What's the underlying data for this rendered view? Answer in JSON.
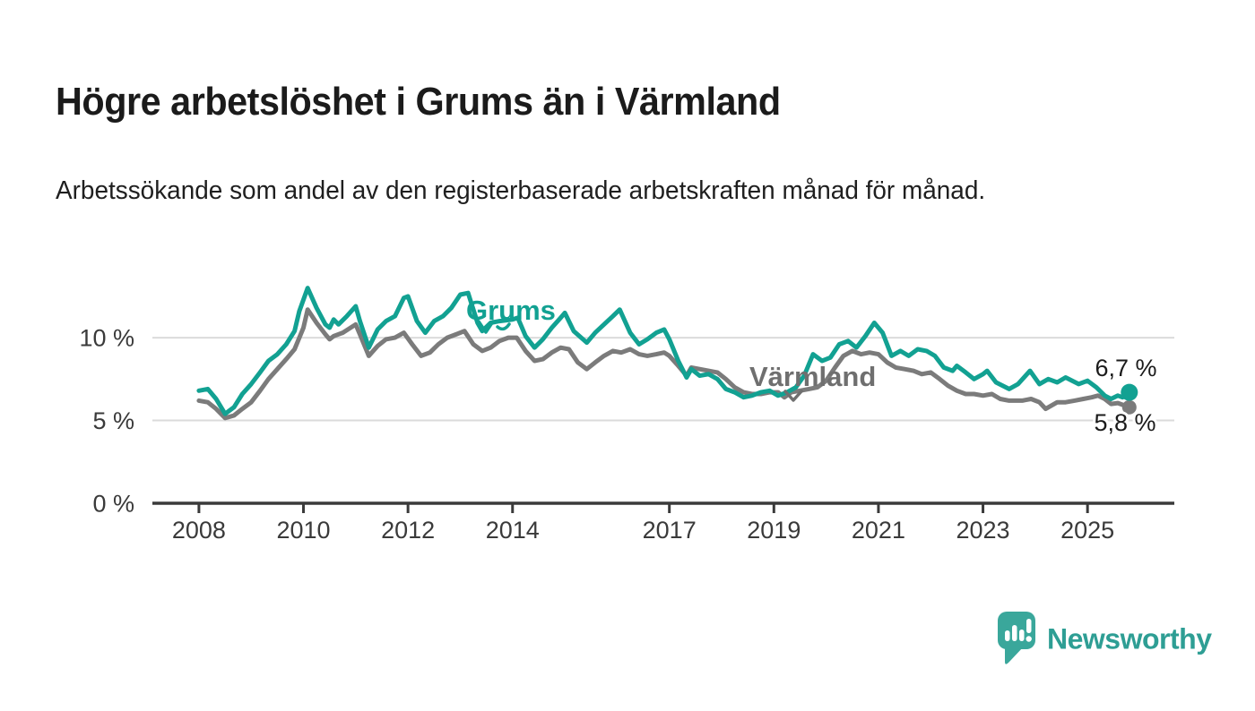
{
  "title": "Högre arbetslöshet i Grums än i Värmland",
  "subtitle": "Arbetssökande som andel av den registerbaserade arbetskraften månad för månad.",
  "logo": {
    "brand": "Newsworthy"
  },
  "colors": {
    "grums_line": "#12A192",
    "varmland_line": "#7B7B7B",
    "varmland_label": "#6F6F6F",
    "axis": "#3A3A3A",
    "gridline": "#DBDBDB",
    "annotation_text": "#1B1B1B",
    "logo_bubble": "#3AA79B",
    "logo_text": "#2E9E94",
    "background": "#FFFFFF"
  },
  "chart_data": {
    "type": "line",
    "unit": "%",
    "title": "Högre arbetslöshet i Grums än i Värmland",
    "xlabel": "",
    "ylabel": "",
    "xlim": [
      2007.1,
      2026.7
    ],
    "ylim": [
      0,
      14.8
    ],
    "grid": "horizontal",
    "legend_position": "inline-annotations",
    "x_ticks": [
      2008,
      2010,
      2012,
      2014,
      2017,
      2019,
      2021,
      2023,
      2025
    ],
    "x_tick_labels": [
      "2008",
      "2010",
      "2012",
      "2014",
      "2017",
      "2019",
      "2021",
      "2023",
      "2025"
    ],
    "y_ticks": [
      {
        "value": 0,
        "label": "0 %"
      },
      {
        "value": 5,
        "label": "5 %"
      },
      {
        "value": 10,
        "label": "10 %"
      }
    ],
    "series": [
      {
        "name": "Värmland",
        "color": "#7B7B7B",
        "end_label": "5,8 %",
        "end_value": 5.8,
        "points": [
          [
            2008.0,
            6.2
          ],
          [
            2008.17,
            6.1
          ],
          [
            2008.33,
            5.7
          ],
          [
            2008.5,
            5.15
          ],
          [
            2008.67,
            5.3
          ],
          [
            2008.83,
            5.7
          ],
          [
            2009.0,
            6.1
          ],
          [
            2009.17,
            6.8
          ],
          [
            2009.33,
            7.5
          ],
          [
            2009.5,
            8.1
          ],
          [
            2009.67,
            8.7
          ],
          [
            2009.83,
            9.3
          ],
          [
            2010.0,
            10.6
          ],
          [
            2010.08,
            11.7
          ],
          [
            2010.25,
            10.9
          ],
          [
            2010.42,
            10.2
          ],
          [
            2010.5,
            9.9
          ],
          [
            2010.58,
            10.1
          ],
          [
            2010.75,
            10.3
          ],
          [
            2011.0,
            10.8
          ],
          [
            2011.08,
            10.2
          ],
          [
            2011.25,
            8.9
          ],
          [
            2011.42,
            9.5
          ],
          [
            2011.58,
            9.9
          ],
          [
            2011.75,
            10.0
          ],
          [
            2011.92,
            10.3
          ],
          [
            2012.08,
            9.6
          ],
          [
            2012.25,
            8.9
          ],
          [
            2012.42,
            9.1
          ],
          [
            2012.58,
            9.6
          ],
          [
            2012.75,
            10.0
          ],
          [
            2012.92,
            10.2
          ],
          [
            2013.08,
            10.4
          ],
          [
            2013.25,
            9.6
          ],
          [
            2013.42,
            9.2
          ],
          [
            2013.58,
            9.4
          ],
          [
            2013.75,
            9.8
          ],
          [
            2013.92,
            10.0
          ],
          [
            2014.08,
            10.0
          ],
          [
            2014.25,
            9.2
          ],
          [
            2014.42,
            8.6
          ],
          [
            2014.58,
            8.7
          ],
          [
            2014.75,
            9.1
          ],
          [
            2014.92,
            9.4
          ],
          [
            2015.08,
            9.3
          ],
          [
            2015.25,
            8.5
          ],
          [
            2015.42,
            8.1
          ],
          [
            2015.58,
            8.5
          ],
          [
            2015.75,
            8.9
          ],
          [
            2015.92,
            9.2
          ],
          [
            2016.08,
            9.1
          ],
          [
            2016.25,
            9.3
          ],
          [
            2016.42,
            9.0
          ],
          [
            2016.58,
            8.9
          ],
          [
            2016.75,
            9.0
          ],
          [
            2016.9,
            9.1
          ],
          [
            2017.0,
            8.9
          ],
          [
            2017.17,
            8.3
          ],
          [
            2017.33,
            7.7
          ],
          [
            2017.42,
            8.2
          ],
          [
            2017.58,
            8.1
          ],
          [
            2017.75,
            8.0
          ],
          [
            2017.92,
            7.9
          ],
          [
            2018.08,
            7.5
          ],
          [
            2018.25,
            7.0
          ],
          [
            2018.42,
            6.7
          ],
          [
            2018.58,
            6.6
          ],
          [
            2018.75,
            6.6
          ],
          [
            2018.92,
            6.7
          ],
          [
            2019.08,
            6.7
          ],
          [
            2019.2,
            6.4
          ],
          [
            2019.33,
            6.7
          ],
          [
            2019.5,
            6.8
          ],
          [
            2019.67,
            6.9
          ],
          [
            2019.83,
            7.0
          ],
          [
            2020.0,
            7.4
          ],
          [
            2020.17,
            8.2
          ],
          [
            2020.33,
            8.9
          ],
          [
            2020.5,
            9.2
          ],
          [
            2020.67,
            9.0
          ],
          [
            2020.83,
            9.1
          ],
          [
            2021.0,
            9.0
          ],
          [
            2021.17,
            8.5
          ],
          [
            2021.33,
            8.2
          ],
          [
            2021.5,
            8.1
          ],
          [
            2021.67,
            8.0
          ],
          [
            2021.83,
            7.8
          ],
          [
            2022.0,
            7.9
          ],
          [
            2022.17,
            7.5
          ],
          [
            2022.33,
            7.1
          ],
          [
            2022.5,
            6.8
          ],
          [
            2022.67,
            6.6
          ],
          [
            2022.83,
            6.6
          ],
          [
            2023.0,
            6.5
          ],
          [
            2023.17,
            6.6
          ],
          [
            2023.33,
            6.3
          ],
          [
            2023.5,
            6.2
          ],
          [
            2023.75,
            6.2
          ],
          [
            2023.92,
            6.3
          ],
          [
            2024.08,
            6.1
          ],
          [
            2024.2,
            5.7
          ],
          [
            2024.42,
            6.1
          ],
          [
            2024.58,
            6.1
          ],
          [
            2024.75,
            6.2
          ],
          [
            2024.92,
            6.3
          ],
          [
            2025.08,
            6.4
          ],
          [
            2025.2,
            6.5
          ],
          [
            2025.33,
            6.3
          ],
          [
            2025.45,
            6.0
          ],
          [
            2025.58,
            6.05
          ],
          [
            2025.67,
            5.95
          ],
          [
            2025.8,
            5.8
          ]
        ]
      },
      {
        "name": "Grums",
        "color": "#12A192",
        "end_label": "6,7 %",
        "end_value": 6.7,
        "points": [
          [
            2008.0,
            6.8
          ],
          [
            2008.17,
            6.9
          ],
          [
            2008.33,
            6.3
          ],
          [
            2008.5,
            5.4
          ],
          [
            2008.67,
            5.8
          ],
          [
            2008.83,
            6.6
          ],
          [
            2009.0,
            7.2
          ],
          [
            2009.17,
            7.9
          ],
          [
            2009.33,
            8.6
          ],
          [
            2009.5,
            9.0
          ],
          [
            2009.67,
            9.6
          ],
          [
            2009.83,
            10.4
          ],
          [
            2009.92,
            11.6
          ],
          [
            2010.08,
            13.0
          ],
          [
            2010.25,
            11.8
          ],
          [
            2010.42,
            10.8
          ],
          [
            2010.5,
            10.6
          ],
          [
            2010.58,
            11.1
          ],
          [
            2010.67,
            10.8
          ],
          [
            2010.83,
            11.3
          ],
          [
            2011.0,
            11.9
          ],
          [
            2011.08,
            11.0
          ],
          [
            2011.25,
            9.4
          ],
          [
            2011.42,
            10.5
          ],
          [
            2011.58,
            11.0
          ],
          [
            2011.75,
            11.3
          ],
          [
            2011.92,
            12.4
          ],
          [
            2012.0,
            12.5
          ],
          [
            2012.17,
            11.0
          ],
          [
            2012.33,
            10.3
          ],
          [
            2012.5,
            11.0
          ],
          [
            2012.67,
            11.3
          ],
          [
            2012.83,
            11.8
          ],
          [
            2013.0,
            12.6
          ],
          [
            2013.15,
            12.7
          ],
          [
            2013.33,
            10.9
          ],
          [
            2013.42,
            10.4
          ],
          [
            2013.58,
            10.9
          ],
          [
            2013.75,
            11.0
          ],
          [
            2014.0,
            11.1
          ],
          [
            2014.1,
            11.2
          ],
          [
            2014.25,
            10.1
          ],
          [
            2014.42,
            9.4
          ],
          [
            2014.58,
            9.9
          ],
          [
            2014.75,
            10.6
          ],
          [
            2014.92,
            11.2
          ],
          [
            2015.0,
            11.5
          ],
          [
            2015.17,
            10.4
          ],
          [
            2015.42,
            9.7
          ],
          [
            2015.58,
            10.3
          ],
          [
            2015.75,
            10.8
          ],
          [
            2015.92,
            11.3
          ],
          [
            2016.05,
            11.7
          ],
          [
            2016.25,
            10.3
          ],
          [
            2016.42,
            9.6
          ],
          [
            2016.58,
            9.9
          ],
          [
            2016.75,
            10.3
          ],
          [
            2016.9,
            10.5
          ],
          [
            2017.0,
            9.9
          ],
          [
            2017.17,
            8.6
          ],
          [
            2017.33,
            7.6
          ],
          [
            2017.42,
            8.1
          ],
          [
            2017.58,
            7.7
          ],
          [
            2017.75,
            7.8
          ],
          [
            2017.92,
            7.5
          ],
          [
            2018.08,
            6.9
          ],
          [
            2018.25,
            6.7
          ],
          [
            2018.42,
            6.4
          ],
          [
            2018.58,
            6.5
          ],
          [
            2018.75,
            6.7
          ],
          [
            2018.92,
            6.8
          ],
          [
            2019.08,
            6.5
          ],
          [
            2019.25,
            6.7
          ],
          [
            2019.42,
            7.0
          ],
          [
            2019.58,
            7.7
          ],
          [
            2019.75,
            9.0
          ],
          [
            2019.92,
            8.6
          ],
          [
            2020.08,
            8.8
          ],
          [
            2020.25,
            9.6
          ],
          [
            2020.42,
            9.8
          ],
          [
            2020.58,
            9.4
          ],
          [
            2020.75,
            10.1
          ],
          [
            2020.92,
            10.9
          ],
          [
            2021.08,
            10.3
          ],
          [
            2021.25,
            8.9
          ],
          [
            2021.42,
            9.2
          ],
          [
            2021.58,
            8.9
          ],
          [
            2021.75,
            9.3
          ],
          [
            2021.92,
            9.2
          ],
          [
            2022.08,
            8.9
          ],
          [
            2022.25,
            8.2
          ],
          [
            2022.42,
            8.0
          ],
          [
            2022.5,
            8.3
          ],
          [
            2022.67,
            7.9
          ],
          [
            2022.83,
            7.5
          ],
          [
            2023.0,
            7.8
          ],
          [
            2023.08,
            8.0
          ],
          [
            2023.25,
            7.3
          ],
          [
            2023.5,
            6.9
          ],
          [
            2023.67,
            7.2
          ],
          [
            2023.9,
            8.0
          ],
          [
            2024.08,
            7.2
          ],
          [
            2024.25,
            7.5
          ],
          [
            2024.42,
            7.3
          ],
          [
            2024.58,
            7.6
          ],
          [
            2024.83,
            7.2
          ],
          [
            2025.0,
            7.4
          ],
          [
            2025.17,
            7.0
          ],
          [
            2025.33,
            6.5
          ],
          [
            2025.45,
            6.3
          ],
          [
            2025.58,
            6.5
          ],
          [
            2025.67,
            6.4
          ],
          [
            2025.8,
            6.7
          ]
        ]
      }
    ]
  }
}
